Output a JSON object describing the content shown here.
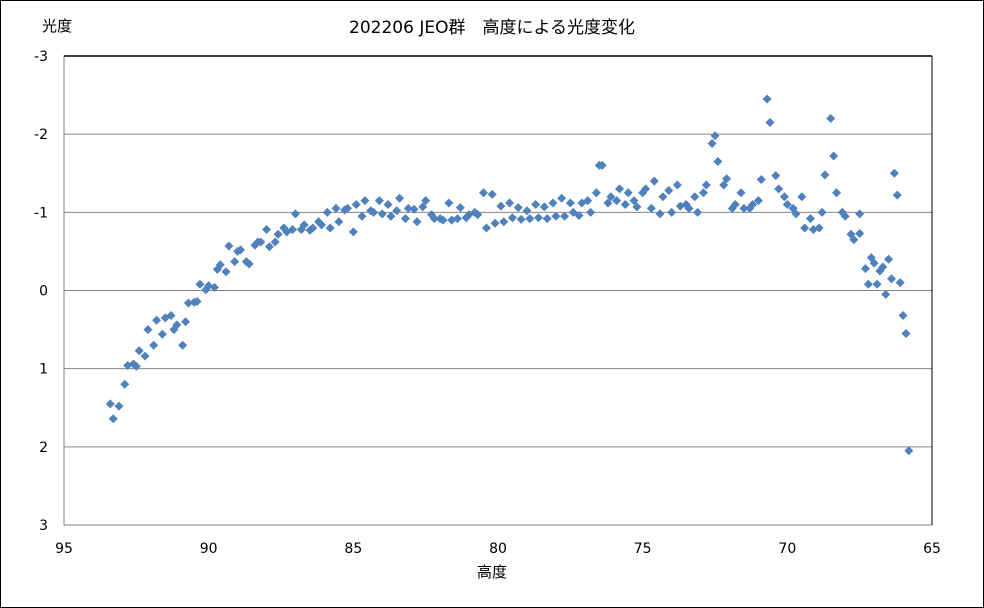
{
  "chart_data": {
    "type": "scatter",
    "title": "202206 JEO群　高度による光度変化",
    "xlabel": "高度",
    "ylabel": "光度",
    "xlim": [
      95,
      65
    ],
    "ylim": [
      -3,
      3
    ],
    "x_reversed": true,
    "y_reversed": true,
    "x_ticks": [
      95,
      90,
      85,
      80,
      75,
      70,
      65
    ],
    "y_ticks": [
      -3,
      -2,
      -1,
      0,
      1,
      2,
      3
    ],
    "grid": {
      "horizontal": true,
      "vertical": false
    },
    "legend": null,
    "marker": {
      "shape": "diamond",
      "color": "#4F81BD"
    },
    "series": [
      {
        "name": "光度",
        "points": [
          [
            93.4,
            1.45
          ],
          [
            93.3,
            1.64
          ],
          [
            93.1,
            1.48
          ],
          [
            92.9,
            1.2
          ],
          [
            92.8,
            0.96
          ],
          [
            92.6,
            0.94
          ],
          [
            92.5,
            0.97
          ],
          [
            92.4,
            0.77
          ],
          [
            92.2,
            0.84
          ],
          [
            92.1,
            0.5
          ],
          [
            91.9,
            0.7
          ],
          [
            91.8,
            0.38
          ],
          [
            91.6,
            0.56
          ],
          [
            91.5,
            0.35
          ],
          [
            91.3,
            0.32
          ],
          [
            91.2,
            0.5
          ],
          [
            91.1,
            0.44
          ],
          [
            90.9,
            0.7
          ],
          [
            90.8,
            0.4
          ],
          [
            90.7,
            0.16
          ],
          [
            90.5,
            0.15
          ],
          [
            90.4,
            0.14
          ],
          [
            90.3,
            -0.08
          ],
          [
            90.1,
            -0.01
          ],
          [
            90.0,
            -0.06
          ],
          [
            89.8,
            -0.04
          ],
          [
            89.7,
            -0.27
          ],
          [
            89.6,
            -0.33
          ],
          [
            89.4,
            -0.24
          ],
          [
            89.3,
            -0.57
          ],
          [
            89.1,
            -0.37
          ],
          [
            89.0,
            -0.5
          ],
          [
            88.9,
            -0.52
          ],
          [
            88.7,
            -0.37
          ],
          [
            88.6,
            -0.34
          ],
          [
            88.4,
            -0.58
          ],
          [
            88.3,
            -0.62
          ],
          [
            88.2,
            -0.62
          ],
          [
            88.0,
            -0.78
          ],
          [
            87.9,
            -0.56
          ],
          [
            87.7,
            -0.62
          ],
          [
            87.6,
            -0.72
          ],
          [
            87.4,
            -0.8
          ],
          [
            87.3,
            -0.75
          ],
          [
            87.1,
            -0.78
          ],
          [
            87.0,
            -0.98
          ],
          [
            86.8,
            -0.78
          ],
          [
            86.7,
            -0.84
          ],
          [
            86.5,
            -0.77
          ],
          [
            86.4,
            -0.8
          ],
          [
            86.2,
            -0.88
          ],
          [
            86.1,
            -0.84
          ],
          [
            85.9,
            -1.0
          ],
          [
            85.8,
            -0.8
          ],
          [
            85.6,
            -1.05
          ],
          [
            85.5,
            -0.88
          ],
          [
            85.3,
            -1.03
          ],
          [
            85.2,
            -1.05
          ],
          [
            85.0,
            -0.75
          ],
          [
            84.9,
            -1.1
          ],
          [
            84.7,
            -0.95
          ],
          [
            84.6,
            -1.15
          ],
          [
            84.4,
            -1.02
          ],
          [
            84.3,
            -1.0
          ],
          [
            84.1,
            -1.15
          ],
          [
            84.0,
            -0.98
          ],
          [
            83.8,
            -1.1
          ],
          [
            83.7,
            -0.95
          ],
          [
            83.5,
            -1.02
          ],
          [
            83.4,
            -1.18
          ],
          [
            83.2,
            -0.92
          ],
          [
            83.1,
            -1.05
          ],
          [
            82.9,
            -1.04
          ],
          [
            82.8,
            -0.88
          ],
          [
            82.6,
            -1.07
          ],
          [
            82.5,
            -1.15
          ],
          [
            82.3,
            -0.97
          ],
          [
            82.2,
            -0.92
          ],
          [
            82.0,
            -0.92
          ],
          [
            81.9,
            -0.9
          ],
          [
            81.7,
            -1.12
          ],
          [
            81.6,
            -0.9
          ],
          [
            81.4,
            -0.92
          ],
          [
            81.3,
            -1.06
          ],
          [
            81.1,
            -0.93
          ],
          [
            81.0,
            -0.97
          ],
          [
            80.8,
            -1.0
          ],
          [
            80.7,
            -0.97
          ],
          [
            80.5,
            -1.25
          ],
          [
            80.4,
            -0.8
          ],
          [
            80.2,
            -1.23
          ],
          [
            80.1,
            -0.86
          ],
          [
            79.9,
            -1.08
          ],
          [
            79.8,
            -0.88
          ],
          [
            79.6,
            -1.12
          ],
          [
            79.5,
            -0.93
          ],
          [
            79.3,
            -1.06
          ],
          [
            79.2,
            -0.91
          ],
          [
            79.0,
            -1.02
          ],
          [
            78.9,
            -0.92
          ],
          [
            78.7,
            -1.1
          ],
          [
            78.6,
            -0.93
          ],
          [
            78.4,
            -1.07
          ],
          [
            78.3,
            -0.92
          ],
          [
            78.1,
            -1.12
          ],
          [
            78.0,
            -0.95
          ],
          [
            77.8,
            -1.18
          ],
          [
            77.7,
            -0.95
          ],
          [
            77.5,
            -1.12
          ],
          [
            77.4,
            -1.0
          ],
          [
            77.2,
            -0.96
          ],
          [
            77.1,
            -1.12
          ],
          [
            76.9,
            -1.15
          ],
          [
            76.8,
            -1.0
          ],
          [
            76.6,
            -1.25
          ],
          [
            76.5,
            -1.6
          ],
          [
            76.4,
            -1.6
          ],
          [
            76.2,
            -1.12
          ],
          [
            76.1,
            -1.2
          ],
          [
            75.9,
            -1.15
          ],
          [
            75.8,
            -1.3
          ],
          [
            75.6,
            -1.1
          ],
          [
            75.5,
            -1.25
          ],
          [
            75.3,
            -1.15
          ],
          [
            75.2,
            -1.07
          ],
          [
            75.0,
            -1.25
          ],
          [
            74.9,
            -1.3
          ],
          [
            74.7,
            -1.05
          ],
          [
            74.6,
            -1.4
          ],
          [
            74.4,
            -0.98
          ],
          [
            74.3,
            -1.2
          ],
          [
            74.1,
            -1.28
          ],
          [
            74.0,
            -1.0
          ],
          [
            73.8,
            -1.35
          ],
          [
            73.7,
            -1.08
          ],
          [
            73.5,
            -1.1
          ],
          [
            73.4,
            -1.05
          ],
          [
            73.2,
            -1.2
          ],
          [
            73.1,
            -1.0
          ],
          [
            72.9,
            -1.25
          ],
          [
            72.8,
            -1.35
          ],
          [
            72.6,
            -1.88
          ],
          [
            72.5,
            -1.98
          ],
          [
            72.4,
            -1.65
          ],
          [
            72.2,
            -1.35
          ],
          [
            72.1,
            -1.43
          ],
          [
            71.9,
            -1.05
          ],
          [
            71.8,
            -1.1
          ],
          [
            71.6,
            -1.25
          ],
          [
            71.5,
            -1.05
          ],
          [
            71.3,
            -1.05
          ],
          [
            71.2,
            -1.1
          ],
          [
            71.0,
            -1.15
          ],
          [
            70.9,
            -1.42
          ],
          [
            70.7,
            -2.45
          ],
          [
            70.6,
            -2.15
          ],
          [
            70.4,
            -1.47
          ],
          [
            70.3,
            -1.3
          ],
          [
            70.1,
            -1.2
          ],
          [
            70.0,
            -1.1
          ],
          [
            69.8,
            -1.05
          ],
          [
            69.7,
            -0.98
          ],
          [
            69.5,
            -1.2
          ],
          [
            69.4,
            -0.8
          ],
          [
            69.2,
            -0.92
          ],
          [
            69.1,
            -0.78
          ],
          [
            68.9,
            -0.8
          ],
          [
            68.8,
            -1.0
          ],
          [
            68.7,
            -1.48
          ],
          [
            68.5,
            -2.2
          ],
          [
            68.4,
            -1.72
          ],
          [
            68.3,
            -1.25
          ],
          [
            68.1,
            -1.0
          ],
          [
            68.0,
            -0.95
          ],
          [
            67.8,
            -0.72
          ],
          [
            67.7,
            -0.65
          ],
          [
            67.5,
            -0.98
          ],
          [
            67.5,
            -0.73
          ],
          [
            67.3,
            -0.28
          ],
          [
            67.2,
            -0.08
          ],
          [
            67.1,
            -0.42
          ],
          [
            67.0,
            -0.35
          ],
          [
            66.9,
            -0.08
          ],
          [
            66.8,
            -0.25
          ],
          [
            66.7,
            -0.3
          ],
          [
            66.6,
            0.05
          ],
          [
            66.5,
            -0.4
          ],
          [
            66.4,
            -0.15
          ],
          [
            66.3,
            -1.5
          ],
          [
            66.2,
            -1.22
          ],
          [
            66.1,
            -0.1
          ],
          [
            66.0,
            0.32
          ],
          [
            65.9,
            0.55
          ],
          [
            65.8,
            2.05
          ]
        ]
      }
    ]
  },
  "labels": {
    "title": "202206 JEO群　高度による光度変化",
    "ylabel": "光度",
    "xlabel": "高度"
  }
}
